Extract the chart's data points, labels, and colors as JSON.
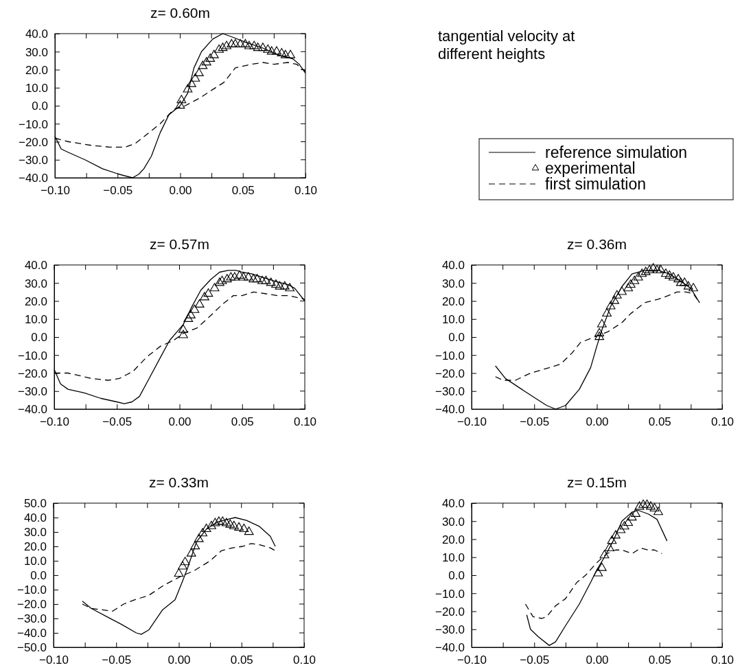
{
  "chart_data": [
    {
      "type": "line",
      "title": "z= 0.60m",
      "xlim": [
        -0.1,
        0.1
      ],
      "ylim": [
        -40,
        40
      ],
      "xticks": [
        {
          "value": -0.1,
          "label": "−0.10"
        },
        {
          "value": -0.075,
          "label": null
        },
        {
          "value": -0.05,
          "label": "−0.05"
        },
        {
          "value": -0.025,
          "label": null
        },
        {
          "value": 0,
          "label": "0.00"
        },
        {
          "value": 0.025,
          "label": null
        },
        {
          "value": 0.05,
          "label": "0.05"
        },
        {
          "value": 0.075,
          "label": null
        },
        {
          "value": 0.1,
          "label": "0.10"
        }
      ],
      "yticks": [
        {
          "value": -40,
          "label": "−40.0"
        },
        {
          "value": -30,
          "label": "−30.0"
        },
        {
          "value": -20,
          "label": "−20.0"
        },
        {
          "value": -10,
          "label": "−10.0"
        },
        {
          "value": 0,
          "label": "0.0"
        },
        {
          "value": 10,
          "label": "10.0"
        },
        {
          "value": 20,
          "label": "20.0"
        },
        {
          "value": 30,
          "label": "30.0"
        },
        {
          "value": 40,
          "label": "40.0"
        }
      ],
      "legend": "right",
      "series": [
        {
          "name": "reference simulation",
          "type": "line",
          "line_style": "solid",
          "color": "#000000",
          "x": [
            -0.1,
            -0.095,
            -0.089,
            -0.076,
            -0.062,
            -0.049,
            -0.038,
            -0.033,
            -0.029,
            -0.023,
            -0.016,
            -0.009,
            0.0,
            0.006,
            0.011,
            0.017,
            0.026,
            0.034,
            0.042,
            0.053,
            0.066,
            0.079,
            0.09,
            0.095,
            0.1
          ],
          "values": [
            -17,
            -24,
            -26,
            -30,
            -35,
            -38,
            -40,
            -38,
            -35,
            -28,
            -15,
            -5,
            0,
            7,
            21,
            30,
            37,
            40,
            38,
            35,
            32,
            28,
            26,
            23,
            18
          ]
        },
        {
          "name": "experimental",
          "type": "scatter",
          "marker": "triangle",
          "color": "#000000",
          "x": [
            0.0,
            0.001,
            0.006,
            0.009,
            0.012,
            0.015,
            0.018,
            0.021,
            0.024,
            0.027,
            0.031,
            0.034,
            0.037,
            0.041,
            0.044,
            0.048,
            0.052,
            0.055,
            0.059,
            0.062,
            0.066,
            0.07,
            0.073,
            0.077,
            0.081,
            0.084,
            0.088
          ],
          "values": [
            0,
            3,
            9,
            12,
            15,
            18,
            22,
            24,
            26,
            28,
            31,
            32,
            33,
            34,
            34,
            34,
            34,
            33,
            33,
            32,
            32,
            31,
            30,
            30,
            29,
            28,
            28
          ]
        },
        {
          "name": "first simulation",
          "type": "line",
          "line_style": "dashed",
          "color": "#000000",
          "x": [
            -0.1,
            -0.089,
            -0.071,
            -0.056,
            -0.044,
            -0.036,
            -0.025,
            -0.016,
            -0.005,
            0.004,
            0.015,
            0.026,
            0.035,
            0.044,
            0.057,
            0.066,
            0.075,
            0.086,
            0.093,
            0.1
          ],
          "values": [
            -18,
            -20,
            -22,
            -23,
            -23,
            -21,
            -15,
            -10,
            -2,
            0,
            4,
            9,
            13,
            21,
            23,
            24,
            23,
            24,
            23,
            19
          ]
        }
      ]
    },
    {
      "type": "other",
      "title": "tangential velocity at different heights"
    },
    {
      "type": "line",
      "title": "z= 0.57m",
      "xlim": [
        -0.1,
        0.1
      ],
      "ylim": [
        -40,
        40
      ],
      "xticks": [
        {
          "value": -0.1,
          "label": "−0.10"
        },
        {
          "value": -0.075,
          "label": null
        },
        {
          "value": -0.05,
          "label": "−0.05"
        },
        {
          "value": -0.025,
          "label": null
        },
        {
          "value": 0,
          "label": "0.00"
        },
        {
          "value": 0.025,
          "label": null
        },
        {
          "value": 0.05,
          "label": "0.05"
        },
        {
          "value": 0.075,
          "label": null
        },
        {
          "value": 0.1,
          "label": "0.10"
        }
      ],
      "yticks": [
        {
          "value": -40,
          "label": "−40.0"
        },
        {
          "value": -30,
          "label": "−30.0"
        },
        {
          "value": -20,
          "label": "−20.0"
        },
        {
          "value": -10,
          "label": "−10.0"
        },
        {
          "value": 0,
          "label": "0.0"
        },
        {
          "value": 10,
          "label": "10.0"
        },
        {
          "value": 20,
          "label": "20.0"
        },
        {
          "value": 30,
          "label": "30.0"
        },
        {
          "value": 40,
          "label": "40.0"
        }
      ],
      "series": [
        {
          "type": "line",
          "line_style": "solid",
          "color": "#000000",
          "x": [
            -0.1,
            -0.095,
            -0.089,
            -0.076,
            -0.063,
            -0.05,
            -0.044,
            -0.038,
            -0.032,
            -0.025,
            -0.015,
            -0.008,
            0.003,
            0.01,
            0.017,
            0.025,
            0.032,
            0.039,
            0.045,
            0.05,
            0.058,
            0.067,
            0.076,
            0.087,
            0.092,
            0.1
          ],
          "values": [
            -18,
            -26,
            -29,
            -31,
            -34,
            -36,
            -37,
            -36,
            -33,
            -24,
            -11,
            -2,
            7,
            17,
            26,
            32,
            36,
            37,
            37,
            36,
            35,
            33,
            31,
            29,
            27,
            20
          ]
        },
        {
          "type": "scatter",
          "marker": "triangle",
          "color": "#000000",
          "x": [
            0.003,
            0.003,
            0.007,
            0.009,
            0.012,
            0.016,
            0.02,
            0.023,
            0.028,
            0.032,
            0.034,
            0.038,
            0.041,
            0.044,
            0.048,
            0.051,
            0.055,
            0.059,
            0.062,
            0.066,
            0.069,
            0.073,
            0.077,
            0.08,
            0.084,
            0.088
          ],
          "values": [
            1,
            4,
            10,
            12,
            15,
            18,
            22,
            24,
            27,
            30,
            31,
            32,
            33,
            33,
            34,
            33,
            33,
            32,
            32,
            31,
            31,
            30,
            29,
            28,
            28,
            27
          ]
        },
        {
          "type": "line",
          "line_style": "dashed",
          "color": "#000000",
          "x": [
            -0.1,
            -0.089,
            -0.07,
            -0.057,
            -0.048,
            -0.037,
            -0.026,
            -0.015,
            -0.005,
            0.003,
            0.014,
            0.025,
            0.034,
            0.043,
            0.05,
            0.059,
            0.069,
            0.078,
            0.087,
            0.1
          ],
          "values": [
            -20,
            -20,
            -23,
            -24,
            -23,
            -19,
            -11,
            -5,
            -2,
            2,
            5,
            12,
            18,
            23,
            23,
            25,
            24,
            23,
            23,
            21
          ]
        }
      ]
    },
    {
      "type": "line",
      "title": "z= 0.36m",
      "xlim": [
        -0.1,
        0.1
      ],
      "ylim": [
        -40,
        40
      ],
      "xticks": [
        {
          "value": -0.1,
          "label": "−0.10"
        },
        {
          "value": -0.075,
          "label": null
        },
        {
          "value": -0.05,
          "label": "−0.05"
        },
        {
          "value": -0.025,
          "label": null
        },
        {
          "value": 0,
          "label": "0.00"
        },
        {
          "value": 0.025,
          "label": null
        },
        {
          "value": 0.05,
          "label": "0.05"
        },
        {
          "value": 0.075,
          "label": null
        },
        {
          "value": 0.1,
          "label": "0.10"
        }
      ],
      "yticks": [
        {
          "value": -40,
          "label": "−40.0"
        },
        {
          "value": -30,
          "label": "−30.0"
        },
        {
          "value": -20,
          "label": "−20.0"
        },
        {
          "value": -10,
          "label": "−10.0"
        },
        {
          "value": 0,
          "label": "0.0"
        },
        {
          "value": 10,
          "label": "10.0"
        },
        {
          "value": 20,
          "label": "20.0"
        },
        {
          "value": 30,
          "label": "30.0"
        },
        {
          "value": 40,
          "label": "40.0"
        }
      ],
      "series": [
        {
          "type": "line",
          "line_style": "solid",
          "color": "#000000",
          "x": [
            -0.081,
            -0.073,
            -0.06,
            -0.049,
            -0.04,
            -0.033,
            -0.025,
            -0.014,
            -0.005,
            0.0,
            0.004,
            0.011,
            0.02,
            0.028,
            0.038,
            0.049,
            0.058,
            0.067,
            0.075,
            0.082
          ],
          "values": [
            -16,
            -23,
            -29,
            -34,
            -38,
            -40,
            -38,
            -29,
            -17,
            -5,
            4,
            17,
            28,
            35,
            37,
            37,
            35,
            31,
            27,
            19
          ]
        },
        {
          "type": "scatter",
          "marker": "triangle",
          "color": "#000000",
          "x": [
            0.002,
            0.002,
            0.004,
            0.008,
            0.011,
            0.014,
            0.016,
            0.02,
            0.025,
            0.027,
            0.03,
            0.033,
            0.036,
            0.039,
            0.042,
            0.045,
            0.048,
            0.051,
            0.055,
            0.058,
            0.061,
            0.065,
            0.067,
            0.07,
            0.073,
            0.077
          ],
          "values": [
            0,
            2,
            7,
            13,
            17,
            20,
            23,
            25,
            27,
            29,
            31,
            33,
            35,
            36,
            37,
            38,
            37,
            37,
            35,
            34,
            33,
            32,
            30,
            30,
            28,
            27
          ]
        },
        {
          "type": "line",
          "line_style": "dashed",
          "color": "#000000",
          "x": [
            -0.081,
            -0.075,
            -0.065,
            -0.053,
            -0.038,
            -0.029,
            -0.02,
            -0.013,
            -0.002,
            0.009,
            0.02,
            0.027,
            0.038,
            0.049,
            0.057,
            0.064,
            0.071,
            0.077,
            0.08
          ],
          "values": [
            -22,
            -24,
            -24,
            -20,
            -17,
            -15,
            -9,
            -3,
            0,
            3,
            8,
            13,
            19,
            21,
            23,
            25,
            25,
            24,
            21
          ]
        }
      ]
    },
    {
      "type": "line",
      "title": "z= 0.33m",
      "xlim": [
        -0.1,
        0.1
      ],
      "ylim": [
        -50,
        50
      ],
      "xticks": [
        {
          "value": -0.1,
          "label": "−0.10"
        },
        {
          "value": -0.075,
          "label": null
        },
        {
          "value": -0.05,
          "label": "−0.05"
        },
        {
          "value": -0.025,
          "label": null
        },
        {
          "value": 0,
          "label": "0.00"
        },
        {
          "value": 0.025,
          "label": null
        },
        {
          "value": 0.05,
          "label": "0.05"
        },
        {
          "value": 0.075,
          "label": null
        },
        {
          "value": 0.1,
          "label": "0.10"
        }
      ],
      "yticks": [
        {
          "value": -50,
          "label": "−50.0"
        },
        {
          "value": -40,
          "label": "−40.0"
        },
        {
          "value": -30,
          "label": "−30.0"
        },
        {
          "value": -20,
          "label": "−20.0"
        },
        {
          "value": -10,
          "label": "−10.0"
        },
        {
          "value": 0,
          "label": "0.0"
        },
        {
          "value": 10,
          "label": "10.0"
        },
        {
          "value": 20,
          "label": "20.0"
        },
        {
          "value": 30,
          "label": "30.0"
        },
        {
          "value": 40,
          "label": "40.0"
        },
        {
          "value": 50,
          "label": "50.0"
        }
      ],
      "series": [
        {
          "type": "line",
          "line_style": "solid",
          "color": "#000000",
          "x": [
            -0.077,
            -0.07,
            -0.057,
            -0.046,
            -0.034,
            -0.03,
            -0.024,
            -0.013,
            -0.003,
            0.003,
            0.007,
            0.014,
            0.022,
            0.031,
            0.04,
            0.045,
            0.054,
            0.064,
            0.073,
            0.077
          ],
          "values": [
            -18,
            -23,
            -29,
            -34,
            -40,
            -41,
            -38,
            -24,
            -17,
            -4,
            5,
            23,
            32,
            37,
            39,
            40,
            38,
            34,
            27,
            20
          ]
        },
        {
          "type": "scatter",
          "marker": "triangle",
          "color": "#000000",
          "x": [
            0.0,
            0.003,
            0.005,
            0.01,
            0.013,
            0.016,
            0.019,
            0.022,
            0.026,
            0.029,
            0.032,
            0.035,
            0.038,
            0.041,
            0.044,
            0.048,
            0.052,
            0.056
          ],
          "values": [
            1,
            6,
            9,
            15,
            20,
            25,
            29,
            32,
            34,
            36,
            37,
            37,
            36,
            35,
            34,
            33,
            32,
            30
          ]
        },
        {
          "type": "line",
          "line_style": "dashed",
          "color": "#000000",
          "x": [
            -0.077,
            -0.07,
            -0.061,
            -0.053,
            -0.044,
            -0.035,
            -0.024,
            -0.012,
            0.001,
            0.012,
            0.025,
            0.034,
            0.043,
            0.051,
            0.058,
            0.065,
            0.073,
            0.077
          ],
          "values": [
            -20,
            -23,
            -24,
            -25,
            -20,
            -17,
            -14,
            -7,
            -1,
            3,
            10,
            17,
            19,
            20,
            22,
            21,
            19,
            17
          ]
        }
      ]
    },
    {
      "type": "line",
      "title": "z= 0.15m",
      "xlim": [
        -0.1,
        0.1
      ],
      "ylim": [
        -40,
        40
      ],
      "xticks": [
        {
          "value": -0.1,
          "label": "−0.10"
        },
        {
          "value": -0.075,
          "label": null
        },
        {
          "value": -0.05,
          "label": "−0.05"
        },
        {
          "value": -0.025,
          "label": null
        },
        {
          "value": 0,
          "label": "0.00"
        },
        {
          "value": 0.025,
          "label": null
        },
        {
          "value": 0.05,
          "label": "0.05"
        },
        {
          "value": 0.075,
          "label": null
        },
        {
          "value": 0.1,
          "label": "0.10"
        }
      ],
      "yticks": [
        {
          "value": -40,
          "label": "−40.0"
        },
        {
          "value": -30,
          "label": "−30.0"
        },
        {
          "value": -20,
          "label": "−20.0"
        },
        {
          "value": -10,
          "label": "−10.0"
        },
        {
          "value": 0,
          "label": "0.0"
        },
        {
          "value": 10,
          "label": "10.0"
        },
        {
          "value": 20,
          "label": "20.0"
        },
        {
          "value": 30,
          "label": "30.0"
        },
        {
          "value": 40,
          "label": "40.0"
        }
      ],
      "series": [
        {
          "type": "line",
          "line_style": "solid",
          "color": "#000000",
          "x": [
            -0.056,
            -0.053,
            -0.047,
            -0.038,
            -0.033,
            -0.025,
            -0.014,
            -0.005,
            0.0,
            0.006,
            0.013,
            0.02,
            0.028,
            0.033,
            0.041,
            0.048,
            0.052,
            0.056
          ],
          "values": [
            -22,
            -30,
            -34,
            -39,
            -37,
            -28,
            -16,
            -4,
            3,
            10,
            19,
            30,
            35,
            36,
            34,
            31,
            25,
            19
          ]
        },
        {
          "type": "scatter",
          "marker": "triangle",
          "color": "#000000",
          "x": [
            0.001,
            0.004,
            0.006,
            0.01,
            0.012,
            0.015,
            0.019,
            0.022,
            0.025,
            0.028,
            0.031,
            0.034,
            0.037,
            0.04,
            0.043,
            0.046,
            0.049
          ],
          "values": [
            1,
            4,
            11,
            15,
            19,
            22,
            25,
            27,
            29,
            32,
            34,
            38,
            39,
            39,
            38,
            37,
            35
          ]
        },
        {
          "type": "line",
          "line_style": "dashed",
          "color": "#000000",
          "x": [
            -0.057,
            -0.051,
            -0.044,
            -0.04,
            -0.033,
            -0.025,
            -0.016,
            -0.009,
            0.0,
            0.008,
            0.015,
            0.02,
            0.028,
            0.035,
            0.041,
            0.046,
            0.052
          ],
          "values": [
            -16,
            -23,
            -24,
            -23,
            -17,
            -13,
            -4,
            0,
            7,
            12,
            14,
            14,
            12,
            15,
            14,
            14,
            12
          ]
        }
      ]
    }
  ]
}
